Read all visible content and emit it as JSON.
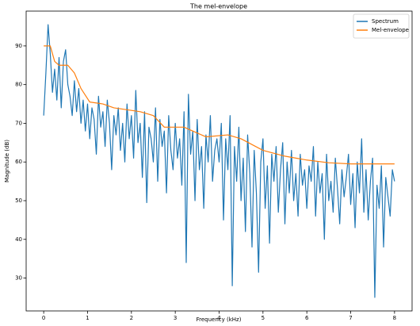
{
  "chart_data": {
    "type": "line",
    "title": "The mel-envelope",
    "xlabel": "Frequency (kHz)",
    "ylabel": "Magnitude (dB)",
    "xlim": [
      -0.4,
      8.4
    ],
    "ylim": [
      21.5,
      99
    ],
    "xticks": [
      0,
      1,
      2,
      3,
      4,
      5,
      6,
      7,
      8
    ],
    "yticks": [
      30,
      40,
      50,
      60,
      70,
      80,
      90
    ],
    "legend": "upper right",
    "series": [
      {
        "name": "Spectrum",
        "color": "#1f77b4",
        "x": [
          0,
          0.05,
          0.1,
          0.15,
          0.2,
          0.25,
          0.3,
          0.35,
          0.4,
          0.45,
          0.5,
          0.55,
          0.6,
          0.65,
          0.7,
          0.75,
          0.8,
          0.85,
          0.9,
          0.95,
          1,
          1.05,
          1.1,
          1.15,
          1.2,
          1.25,
          1.3,
          1.35,
          1.4,
          1.45,
          1.5,
          1.55,
          1.6,
          1.65,
          1.7,
          1.75,
          1.8,
          1.85,
          1.9,
          1.95,
          2,
          2.05,
          2.1,
          2.15,
          2.2,
          2.25,
          2.3,
          2.35,
          2.4,
          2.45,
          2.5,
          2.55,
          2.6,
          2.65,
          2.7,
          2.75,
          2.8,
          2.85,
          2.9,
          2.95,
          3,
          3.05,
          3.1,
          3.15,
          3.2,
          3.25,
          3.3,
          3.35,
          3.4,
          3.45,
          3.5,
          3.55,
          3.6,
          3.65,
          3.7,
          3.75,
          3.8,
          3.85,
          3.9,
          3.95,
          4,
          4.05,
          4.1,
          4.15,
          4.2,
          4.25,
          4.3,
          4.35,
          4.4,
          4.45,
          4.5,
          4.55,
          4.6,
          4.65,
          4.7,
          4.75,
          4.8,
          4.85,
          4.9,
          4.95,
          5,
          5.05,
          5.1,
          5.15,
          5.2,
          5.25,
          5.3,
          5.35,
          5.4,
          5.45,
          5.5,
          5.55,
          5.6,
          5.65,
          5.7,
          5.75,
          5.8,
          5.85,
          5.9,
          5.95,
          6,
          6.05,
          6.1,
          6.15,
          6.2,
          6.25,
          6.3,
          6.35,
          6.4,
          6.45,
          6.5,
          6.55,
          6.6,
          6.65,
          6.7,
          6.75,
          6.8,
          6.85,
          6.9,
          6.95,
          7,
          7.05,
          7.1,
          7.15,
          7.2,
          7.25,
          7.3,
          7.35,
          7.4,
          7.45,
          7.5,
          7.55,
          7.6,
          7.65,
          7.7,
          7.75,
          7.8,
          7.85,
          7.9,
          7.95,
          8
        ],
        "values": [
          72,
          83,
          95.5,
          88,
          78,
          84,
          76,
          87,
          74,
          86,
          89,
          80,
          77,
          72,
          81,
          73,
          79,
          70,
          76,
          68,
          75,
          66,
          74,
          71,
          62,
          77,
          69,
          73,
          64,
          76,
          70,
          58,
          72,
          67,
          74,
          63,
          70,
          60,
          75,
          66,
          72,
          61,
          78.5,
          65,
          70,
          56,
          73,
          49.5,
          69,
          66,
          60,
          74,
          55,
          71,
          64,
          68,
          52,
          72,
          63,
          58,
          70,
          61,
          66,
          54,
          73,
          34,
          77.5,
          62,
          68,
          50,
          71,
          58,
          64,
          48,
          67,
          60,
          72,
          55,
          63,
          66,
          60,
          70,
          45,
          66,
          58,
          72,
          28,
          64,
          55,
          69,
          50,
          61,
          42,
          67,
          57,
          38,
          63,
          52,
          31.5,
          60,
          66,
          48,
          59,
          39,
          62,
          55,
          64,
          47,
          58,
          65,
          44,
          60,
          52,
          63,
          50,
          57,
          46,
          62,
          54,
          58,
          48,
          59,
          55,
          64,
          46,
          60,
          52,
          57,
          40,
          62,
          50,
          55,
          47,
          61,
          53,
          44,
          58,
          51,
          56,
          62,
          49,
          57,
          43,
          60,
          52,
          66,
          47,
          58,
          45,
          55,
          61,
          25,
          54,
          48,
          59,
          38,
          56,
          51,
          46,
          58,
          55
        ]
      },
      {
        "name": "Mel-envelope",
        "color": "#ff7f0e",
        "x": [
          0,
          0.15,
          0.25,
          0.35,
          0.55,
          0.7,
          0.85,
          1.05,
          1.35,
          1.6,
          2.2,
          2.5,
          2.75,
          3.2,
          3.5,
          3.7,
          4.2,
          4.5,
          5,
          5.5,
          6,
          6.5,
          7,
          8
        ],
        "values": [
          90,
          90,
          86,
          85,
          85,
          83,
          79,
          75.5,
          75,
          74,
          73,
          72,
          69,
          69,
          67.5,
          66.5,
          67,
          66,
          63,
          61.5,
          60.5,
          59.8,
          59.5,
          59.5
        ]
      }
    ]
  }
}
